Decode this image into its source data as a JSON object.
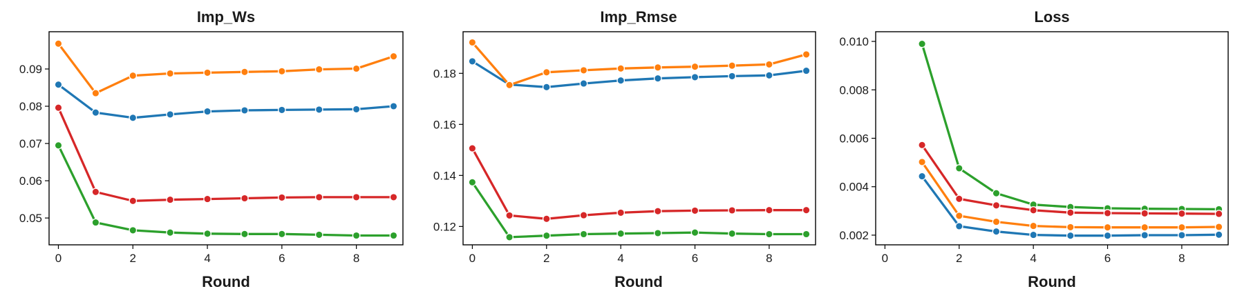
{
  "chart_data": [
    {
      "type": "line",
      "title": "Imp_Ws",
      "xlabel": "Round",
      "ylabel": "",
      "x": [
        0,
        1,
        2,
        3,
        4,
        5,
        6,
        7,
        8,
        9
      ],
      "xlim": [
        -0.25,
        9.25
      ],
      "ylim": [
        0.0428,
        0.1
      ],
      "xticks": [
        "0",
        "2",
        "4",
        "6",
        "8"
      ],
      "yticks": [
        "0.05",
        "0.06",
        "0.07",
        "0.08",
        "0.09"
      ],
      "series": [
        {
          "color": "#1f77b4",
          "values": [
            0.0858,
            0.0783,
            0.0769,
            0.0778,
            0.0786,
            0.0789,
            0.079,
            0.0791,
            0.0792,
            0.08
          ]
        },
        {
          "color": "#ff7f0e",
          "values": [
            0.0968,
            0.0835,
            0.0882,
            0.0888,
            0.089,
            0.0892,
            0.0894,
            0.0899,
            0.0901,
            0.0934
          ]
        },
        {
          "color": "#2ca02c",
          "values": [
            0.0695,
            0.0488,
            0.0467,
            0.0461,
            0.0458,
            0.0457,
            0.0457,
            0.0455,
            0.0453,
            0.0453
          ]
        },
        {
          "color": "#d62728",
          "values": [
            0.0796,
            0.057,
            0.0546,
            0.0549,
            0.0551,
            0.0553,
            0.0555,
            0.0556,
            0.0556,
            0.0556
          ]
        }
      ]
    },
    {
      "type": "line",
      "title": "Imp_Rmse",
      "xlabel": "Round",
      "ylabel": "",
      "x": [
        0,
        1,
        2,
        3,
        4,
        5,
        6,
        7,
        8,
        9
      ],
      "xlim": [
        -0.25,
        9.25
      ],
      "ylim": [
        0.1128,
        0.1963
      ],
      "xticks": [
        "0",
        "2",
        "4",
        "6",
        "8"
      ],
      "yticks": [
        "0.12",
        "0.14",
        "0.16",
        "0.18"
      ],
      "series": [
        {
          "color": "#1f77b4",
          "values": [
            0.1847,
            0.1756,
            0.1746,
            0.176,
            0.1772,
            0.178,
            0.1785,
            0.1789,
            0.1792,
            0.181
          ]
        },
        {
          "color": "#ff7f0e",
          "values": [
            0.1921,
            0.1754,
            0.1804,
            0.1812,
            0.1819,
            0.1823,
            0.1826,
            0.183,
            0.1835,
            0.1874
          ]
        },
        {
          "color": "#2ca02c",
          "values": [
            0.1373,
            0.1158,
            0.1164,
            0.117,
            0.1172,
            0.1174,
            0.1176,
            0.1172,
            0.117,
            0.117
          ]
        },
        {
          "color": "#d62728",
          "values": [
            0.1506,
            0.1243,
            0.123,
            0.1244,
            0.1254,
            0.126,
            0.1262,
            0.1263,
            0.1264,
            0.1264
          ]
        }
      ]
    },
    {
      "type": "line",
      "title": "Loss",
      "xlabel": "Round",
      "ylabel": "",
      "x": [
        1,
        2,
        3,
        4,
        5,
        6,
        7,
        8,
        9
      ],
      "xlim": [
        -0.25,
        9.25
      ],
      "ylim": [
        0.0016,
        0.0104
      ],
      "xticks": [
        "0",
        "2",
        "4",
        "6",
        "8"
      ],
      "yticks": [
        "0.002",
        "0.004",
        "0.006",
        "0.008",
        "0.010"
      ],
      "series": [
        {
          "color": "#1f77b4",
          "values": [
            0.00443,
            0.00237,
            0.00215,
            0.00201,
            0.00198,
            0.00198,
            0.002,
            0.002,
            0.00202
          ]
        },
        {
          "color": "#ff7f0e",
          "values": [
            0.00502,
            0.0028,
            0.00255,
            0.00238,
            0.00233,
            0.00232,
            0.00232,
            0.00232,
            0.00234
          ]
        },
        {
          "color": "#2ca02c",
          "values": [
            0.0099,
            0.00476,
            0.00373,
            0.00326,
            0.00316,
            0.00311,
            0.00309,
            0.00308,
            0.00307
          ]
        },
        {
          "color": "#d62728",
          "values": [
            0.00572,
            0.0035,
            0.00323,
            0.00303,
            0.00293,
            0.00291,
            0.0029,
            0.00289,
            0.00288
          ]
        }
      ]
    }
  ]
}
